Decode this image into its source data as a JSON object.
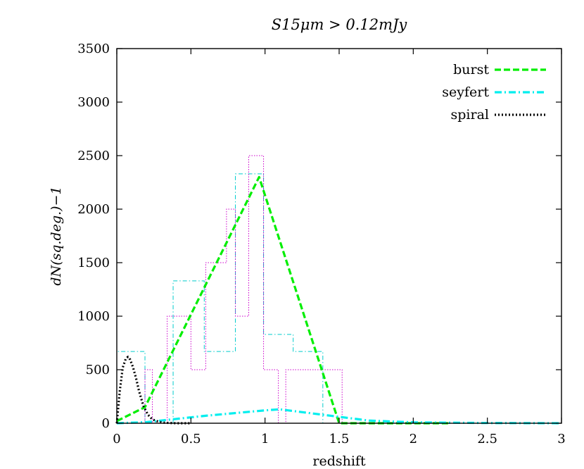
{
  "chart_data": {
    "type": "line",
    "title": "S15μm > 0.12mJy",
    "xlabel": "redshift",
    "ylabel": "dN(sq.deg.)−1",
    "xlim": [
      0,
      3
    ],
    "ylim": [
      0,
      3500
    ],
    "xticks": [
      0,
      0.5,
      1,
      1.5,
      2,
      2.5,
      3
    ],
    "xtick_labels": [
      "0",
      "0.5",
      "1",
      "1.5",
      "2",
      "2.5",
      "3"
    ],
    "yticks": [
      0,
      500,
      1000,
      1500,
      2000,
      2500,
      3000,
      3500
    ],
    "ytick_labels": [
      "0",
      "500",
      "1000",
      "1500",
      "2000",
      "2500",
      "3000",
      "3500"
    ],
    "grid": false,
    "legend_position": "top-right",
    "series": [
      {
        "name": "burst",
        "color": "#00ee00",
        "style": "dashed",
        "x": [
          0,
          0.19,
          0.96,
          1.5,
          2.25
        ],
        "y": [
          20,
          150,
          2300,
          0,
          0
        ]
      },
      {
        "name": "seyfert",
        "color": "#00eeee",
        "style": "dash-dot",
        "x": [
          0,
          0.2,
          0.4,
          0.6,
          0.8,
          1.0,
          1.1,
          1.3,
          1.5,
          1.7,
          2.0,
          2.5,
          3.0
        ],
        "y": [
          0,
          10,
          40,
          70,
          95,
          120,
          130,
          95,
          60,
          25,
          8,
          2,
          0
        ]
      },
      {
        "name": "spiral",
        "color": "#000000",
        "style": "dotted",
        "x": [
          0,
          0.02,
          0.04,
          0.06,
          0.075,
          0.09,
          0.11,
          0.13,
          0.15,
          0.18,
          0.21,
          0.24,
          0.28,
          0.32,
          0.4,
          0.5
        ],
        "y": [
          0,
          300,
          520,
          600,
          620,
          595,
          520,
          420,
          300,
          160,
          80,
          35,
          15,
          5,
          0,
          0
        ]
      }
    ],
    "histograms": [
      {
        "color": "#00cccc",
        "style": "dash-dot",
        "edges": [
          0,
          0.19,
          0.38,
          0.59,
          0.8,
          0.99,
          1.19,
          1.39,
          1.59
        ],
        "heights": [
          670,
          0,
          1330,
          670,
          2330,
          830,
          670,
          0
        ]
      },
      {
        "color": "#cc00cc",
        "style": "dotted",
        "edges": [
          0,
          0.19,
          0.24,
          0.34,
          0.5,
          0.6,
          0.74,
          0.8,
          0.89,
          0.99,
          1.09,
          1.14,
          1.52,
          1.62,
          1.72
        ],
        "heights": [
          0,
          500,
          0,
          1000,
          500,
          1500,
          2000,
          1000,
          2500,
          500,
          0,
          500,
          0,
          0
        ]
      }
    ]
  }
}
